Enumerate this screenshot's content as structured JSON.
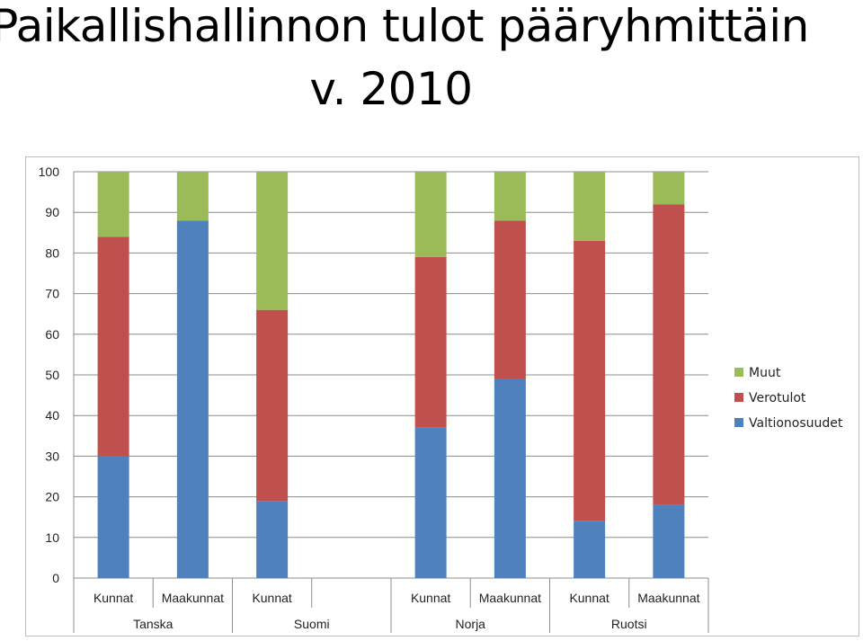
{
  "title_line1": "Paikallishallinnon tulot pääryhmittäin",
  "title_line2": "v. 2010",
  "chart_data": {
    "type": "bar",
    "stacked": true,
    "categories": [
      "Kunnat",
      "Maakunnat",
      "Kunnat",
      "",
      "Kunnat",
      "Maakunnat",
      "Kunnat",
      "Maakunnat"
    ],
    "groups": [
      {
        "label": "Tanska",
        "span": 2
      },
      {
        "label": "Suomi",
        "span": 2
      },
      {
        "label": "Norja",
        "span": 2
      },
      {
        "label": "Ruotsi",
        "span": 2
      }
    ],
    "series": [
      {
        "name": "Valtionosuudet",
        "color": "#4f81bd",
        "values": [
          30,
          88,
          19,
          null,
          37,
          49,
          14,
          18
        ]
      },
      {
        "name": "Verotulot",
        "color": "#c0504d",
        "values": [
          54,
          0,
          47,
          null,
          42,
          39,
          69,
          74
        ]
      },
      {
        "name": "Muut",
        "color": "#9bbb59",
        "values": [
          16,
          12,
          34,
          null,
          21,
          12,
          17,
          8
        ]
      }
    ],
    "ylim": [
      0,
      100
    ],
    "yticks": [
      0,
      10,
      20,
      30,
      40,
      50,
      60,
      70,
      80,
      90,
      100
    ],
    "grid": true,
    "legend_position": "right",
    "xlabel": "",
    "ylabel": ""
  }
}
